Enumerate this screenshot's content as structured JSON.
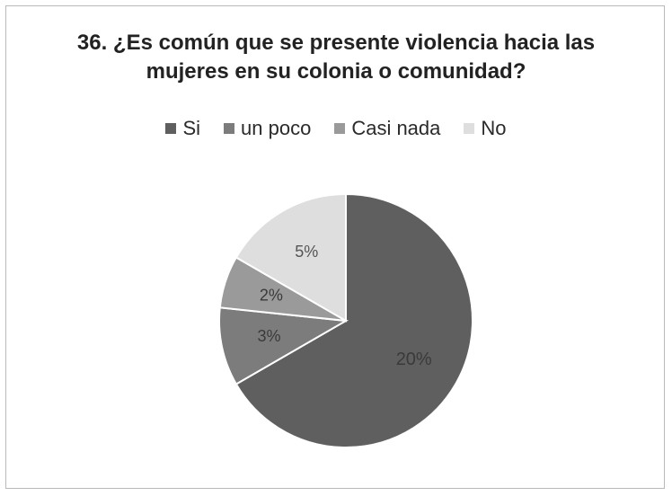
{
  "chart_data": {
    "type": "pie",
    "title_lines": [
      "36. ¿Es común que se presente violencia hacia las",
      "mujeres en su colonia o comunidad?"
    ],
    "categories": [
      "Si",
      "un poco",
      "Casi nada",
      "No"
    ],
    "values": [
      20,
      3,
      2,
      5
    ],
    "labels": [
      "20%",
      "3%",
      "2%",
      "5%"
    ],
    "colors": [
      "#5f5f5f",
      "#7c7c7c",
      "#9a9a9a",
      "#dedede"
    ],
    "legend_position": "top"
  }
}
